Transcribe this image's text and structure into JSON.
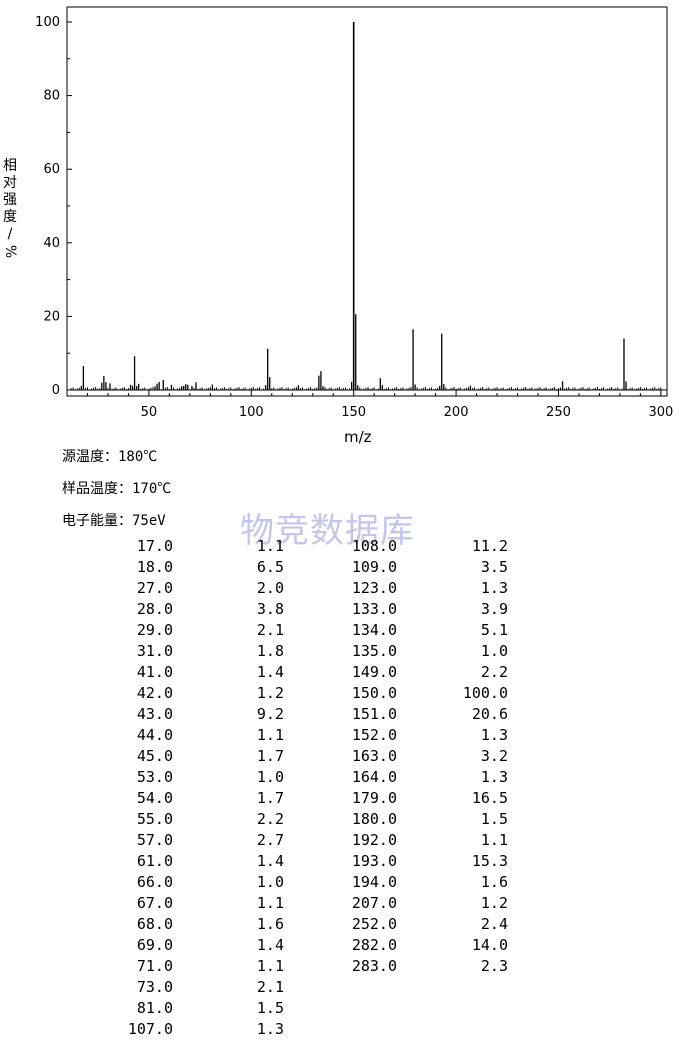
{
  "chart_data": {
    "type": "bar",
    "xlabel": "m/z",
    "ylabel_chars": [
      "相",
      "对",
      "强",
      "度",
      "/",
      "%"
    ],
    "xlim": [
      10,
      303
    ],
    "ylim": [
      0,
      105
    ],
    "x_ticks": [
      50,
      100,
      150,
      200,
      250,
      300
    ],
    "y_ticks": [
      0,
      20,
      40,
      60,
      80,
      100
    ],
    "peaks": [
      {
        "x": 17.0,
        "y": 1.1
      },
      {
        "x": 18.0,
        "y": 6.5
      },
      {
        "x": 27.0,
        "y": 2.0
      },
      {
        "x": 28.0,
        "y": 3.8
      },
      {
        "x": 29.0,
        "y": 2.1
      },
      {
        "x": 31.0,
        "y": 1.8
      },
      {
        "x": 41.0,
        "y": 1.4
      },
      {
        "x": 42.0,
        "y": 1.2
      },
      {
        "x": 43.0,
        "y": 9.2
      },
      {
        "x": 44.0,
        "y": 1.1
      },
      {
        "x": 45.0,
        "y": 1.7
      },
      {
        "x": 53.0,
        "y": 1.0
      },
      {
        "x": 54.0,
        "y": 1.7
      },
      {
        "x": 55.0,
        "y": 2.2
      },
      {
        "x": 57.0,
        "y": 2.7
      },
      {
        "x": 61.0,
        "y": 1.4
      },
      {
        "x": 66.0,
        "y": 1.0
      },
      {
        "x": 67.0,
        "y": 1.1
      },
      {
        "x": 68.0,
        "y": 1.6
      },
      {
        "x": 69.0,
        "y": 1.4
      },
      {
        "x": 71.0,
        "y": 1.1
      },
      {
        "x": 73.0,
        "y": 2.1
      },
      {
        "x": 81.0,
        "y": 1.5
      },
      {
        "x": 107.0,
        "y": 1.3
      },
      {
        "x": 108.0,
        "y": 11.2
      },
      {
        "x": 109.0,
        "y": 3.5
      },
      {
        "x": 123.0,
        "y": 1.3
      },
      {
        "x": 133.0,
        "y": 3.9
      },
      {
        "x": 134.0,
        "y": 5.1
      },
      {
        "x": 135.0,
        "y": 1.0
      },
      {
        "x": 149.0,
        "y": 2.2
      },
      {
        "x": 150.0,
        "y": 100.0
      },
      {
        "x": 151.0,
        "y": 20.6
      },
      {
        "x": 152.0,
        "y": 1.3
      },
      {
        "x": 163.0,
        "y": 3.2
      },
      {
        "x": 164.0,
        "y": 1.3
      },
      {
        "x": 179.0,
        "y": 16.5
      },
      {
        "x": 180.0,
        "y": 1.5
      },
      {
        "x": 192.0,
        "y": 1.1
      },
      {
        "x": 193.0,
        "y": 15.3
      },
      {
        "x": 194.0,
        "y": 1.6
      },
      {
        "x": 207.0,
        "y": 1.2
      },
      {
        "x": 252.0,
        "y": 2.4
      },
      {
        "x": 282.0,
        "y": 14.0
      },
      {
        "x": 283.0,
        "y": 2.3
      }
    ]
  },
  "conditions": {
    "source_temp": "源温度：180℃",
    "sample_temp": "样品温度：170℃",
    "electron_energy": "电子能量：75eV"
  },
  "watermark": "物竞数据库",
  "table": {
    "left": [
      [
        "17.0",
        "1.1"
      ],
      [
        "18.0",
        "6.5"
      ],
      [
        "27.0",
        "2.0"
      ],
      [
        "28.0",
        "3.8"
      ],
      [
        "29.0",
        "2.1"
      ],
      [
        "31.0",
        "1.8"
      ],
      [
        "41.0",
        "1.4"
      ],
      [
        "42.0",
        "1.2"
      ],
      [
        "43.0",
        "9.2"
      ],
      [
        "44.0",
        "1.1"
      ],
      [
        "45.0",
        "1.7"
      ],
      [
        "53.0",
        "1.0"
      ],
      [
        "54.0",
        "1.7"
      ],
      [
        "55.0",
        "2.2"
      ],
      [
        "57.0",
        "2.7"
      ],
      [
        "61.0",
        "1.4"
      ],
      [
        "66.0",
        "1.0"
      ],
      [
        "67.0",
        "1.1"
      ],
      [
        "68.0",
        "1.6"
      ],
      [
        "69.0",
        "1.4"
      ],
      [
        "71.0",
        "1.1"
      ],
      [
        "73.0",
        "2.1"
      ],
      [
        "81.0",
        "1.5"
      ],
      [
        "107.0",
        "1.3"
      ]
    ],
    "right": [
      [
        "108.0",
        "11.2"
      ],
      [
        "109.0",
        "3.5"
      ],
      [
        "123.0",
        "1.3"
      ],
      [
        "133.0",
        "3.9"
      ],
      [
        "134.0",
        "5.1"
      ],
      [
        "135.0",
        "1.0"
      ],
      [
        "149.0",
        "2.2"
      ],
      [
        "150.0",
        "100.0"
      ],
      [
        "151.0",
        "20.6"
      ],
      [
        "152.0",
        "1.3"
      ],
      [
        "163.0",
        "3.2"
      ],
      [
        "164.0",
        "1.3"
      ],
      [
        "179.0",
        "16.5"
      ],
      [
        "180.0",
        "1.5"
      ],
      [
        "192.0",
        "1.1"
      ],
      [
        "193.0",
        "15.3"
      ],
      [
        "194.0",
        "1.6"
      ],
      [
        "207.0",
        "1.2"
      ],
      [
        "252.0",
        "2.4"
      ],
      [
        "282.0",
        "14.0"
      ],
      [
        "283.0",
        "2.3"
      ]
    ]
  }
}
